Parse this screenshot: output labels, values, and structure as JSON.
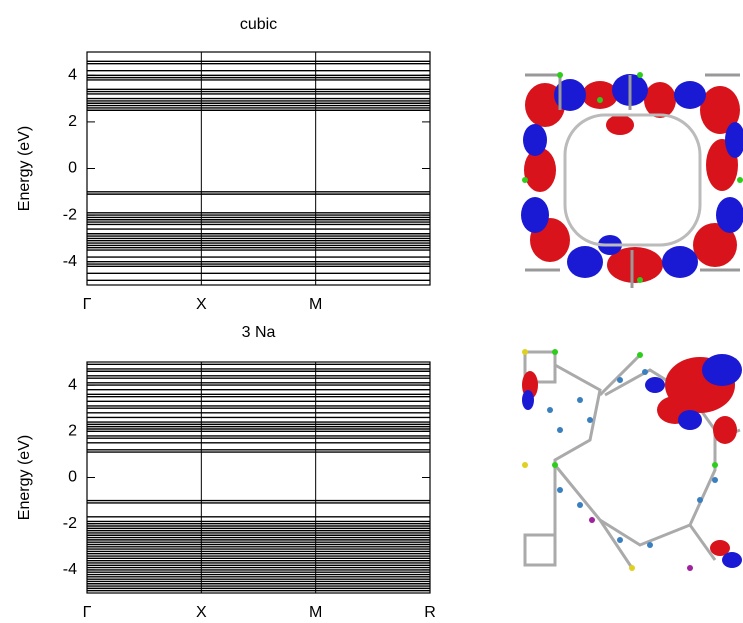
{
  "chart_data": [
    {
      "type": "band",
      "title": "cubic",
      "ylabel": "Energy (eV)",
      "color": "#000000",
      "xlim": [
        0,
        3
      ],
      "xticks": [
        {
          "value": 0,
          "label": "Γ"
        },
        {
          "value": 1,
          "label": "X"
        },
        {
          "value": 2,
          "label": "M"
        }
      ],
      "ylim": [
        -5,
        5
      ],
      "yticks": [
        4,
        2,
        0,
        -2,
        -4
      ],
      "grid": true,
      "bands": [
        4.6,
        4.5,
        4.2,
        4.0,
        3.9,
        3.8,
        3.4,
        3.3,
        3.2,
        3.0,
        2.9,
        2.8,
        2.7,
        2.6,
        2.5,
        -1.0,
        -1.1,
        -1.9,
        -2.0,
        -2.1,
        -2.2,
        -2.3,
        -2.4,
        -2.6,
        -2.8,
        -2.9,
        -3.0,
        -3.1,
        -3.2,
        -3.3,
        -3.4,
        -3.5,
        -3.8,
        -4.0,
        -4.1,
        -4.2,
        -4.5,
        -4.8
      ]
    },
    {
      "type": "band",
      "title": "3 Na",
      "ylabel": "Energy (eV)",
      "color": "#000000",
      "xlim": [
        0,
        3
      ],
      "xticks": [
        {
          "value": 0,
          "label": "Γ"
        },
        {
          "value": 1,
          "label": "X"
        },
        {
          "value": 2,
          "label": "M"
        },
        {
          "value": 3,
          "label": "R"
        }
      ],
      "ylim": [
        -5,
        5
      ],
      "yticks": [
        4,
        2,
        0,
        -2,
        -4
      ],
      "grid": true,
      "bands": [
        4.9,
        4.7,
        4.6,
        4.4,
        4.3,
        4.1,
        4.0,
        3.8,
        3.6,
        3.5,
        3.3,
        3.1,
        3.0,
        2.8,
        2.6,
        2.4,
        2.3,
        2.2,
        2.1,
        2.0,
        1.8,
        1.7,
        1.5,
        1.2,
        1.1,
        -1.0,
        -1.1,
        -1.7,
        -1.9,
        -2.0,
        -2.1,
        -2.2,
        -2.3,
        -2.4,
        -2.5,
        -2.6,
        -2.7,
        -2.8,
        -2.9,
        -3.0,
        -3.1,
        -3.2,
        -3.3,
        -3.4,
        -3.5,
        -3.6,
        -3.7,
        -3.8,
        -3.9,
        -4.0,
        -4.1,
        -4.2,
        -4.3,
        -4.4,
        -4.5,
        -4.6,
        -4.7,
        -4.8,
        -4.9
      ]
    }
  ]
}
